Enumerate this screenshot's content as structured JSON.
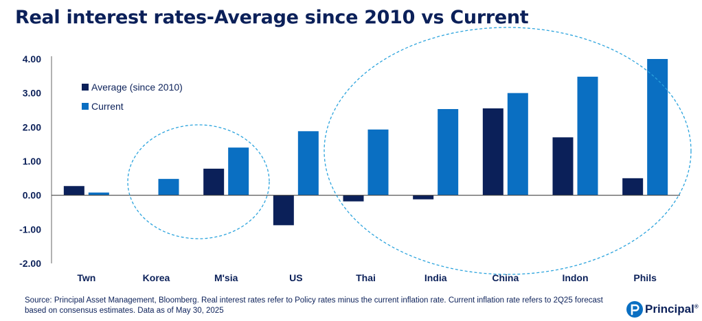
{
  "title": "Real interest rates-Average since 2010 vs Current",
  "source_note": "Source: Principal Asset Management, Bloomberg. Real interest rates refer to Policy rates minus the current inflation rate. Current inflation rate refers to 2Q25 forecast based on consensus estimates. Data as of May 30, 2025",
  "logo": {
    "text": "Principal",
    "mark": "®"
  },
  "colors": {
    "average": "#0b2059",
    "current": "#0a6fc2",
    "text": "#0b2059",
    "ellipse": "#2aa3dd"
  },
  "chart_data": {
    "type": "bar",
    "title": "Real interest rates-Average since 2010 vs Current",
    "categories": [
      "Twn",
      "Korea",
      "M'sia",
      "US",
      "Thai",
      "India",
      "China",
      "Indon",
      "Phils"
    ],
    "series": [
      {
        "name": "Average (since 2010)",
        "values": [
          0.27,
          0.0,
          0.78,
          -0.88,
          -0.18,
          -0.12,
          2.55,
          1.7,
          0.5
        ]
      },
      {
        "name": "Current",
        "values": [
          0.08,
          0.48,
          1.4,
          1.88,
          1.93,
          2.53,
          3.0,
          3.48,
          4.0
        ]
      }
    ],
    "ylim": [
      -2.0,
      4.0
    ],
    "yticks": [
      "-2.00",
      "-1.00",
      "0.00",
      "1.00",
      "2.00",
      "3.00",
      "4.00"
    ],
    "grid": false,
    "legend": "top-left",
    "annotations": [
      "dashed ellipse around Korea and M'sia",
      "dashed ellipse around Thai, India, China, Indon and Phils"
    ]
  }
}
